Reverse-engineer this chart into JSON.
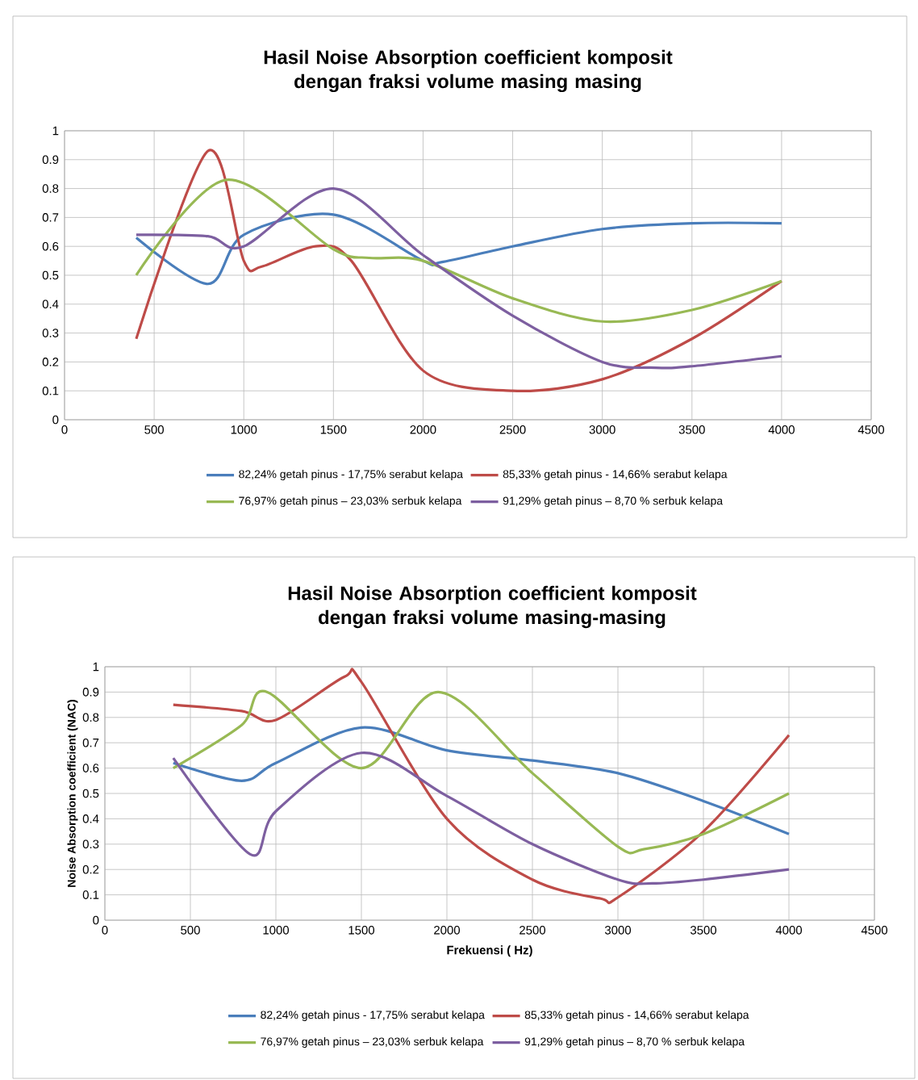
{
  "chart_data": [
    {
      "type": "line",
      "title": "Hasil Noise Absorption coefficient komposit dengan fraksi volume masing masing",
      "xlim": [
        0,
        4500
      ],
      "ylim": [
        0,
        1
      ],
      "xticks": [
        0,
        500,
        1000,
        1500,
        2000,
        2500,
        3000,
        3500,
        4000,
        4500
      ],
      "yticks": [
        0,
        0.1,
        0.2,
        0.3,
        0.4,
        0.5,
        0.6,
        0.7,
        0.8,
        0.9,
        1
      ],
      "grid": true,
      "legend": "bottom",
      "series": [
        {
          "name": "82,24% getah pinus - 17,75% serabut kelapa",
          "color": "#4a7ebb",
          "x": [
            400,
            800,
            1000,
            1500,
            2000,
            2100,
            2500,
            3000,
            3500,
            4000
          ],
          "values": [
            0.63,
            0.47,
            0.64,
            0.71,
            0.55,
            0.545,
            0.6,
            0.66,
            0.68,
            0.68
          ]
        },
        {
          "name": "85,33% getah pinus - 14,66% serabut kelapa",
          "color": "#be4b48",
          "x": [
            400,
            800,
            1000,
            1100,
            1400,
            1600,
            2000,
            2500,
            3000,
            3500,
            4000
          ],
          "values": [
            0.28,
            0.93,
            0.55,
            0.53,
            0.6,
            0.55,
            0.17,
            0.1,
            0.14,
            0.28,
            0.48
          ]
        },
        {
          "name": "76,97% getah pinus – 23,03% serbuk kelapa",
          "color": "#98b954",
          "x": [
            400,
            900,
            1500,
            1700,
            2000,
            2500,
            3000,
            3500,
            4000
          ],
          "values": [
            0.5,
            0.83,
            0.59,
            0.56,
            0.55,
            0.42,
            0.34,
            0.38,
            0.48
          ]
        },
        {
          "name": "91,29% getah pinus – 8,70 % serbuk kelapa",
          "color": "#7d5fa0",
          "x": [
            400,
            800,
            1000,
            1500,
            2000,
            2500,
            3000,
            3300,
            3500,
            4000
          ],
          "values": [
            0.64,
            0.635,
            0.6,
            0.8,
            0.57,
            0.36,
            0.2,
            0.18,
            0.185,
            0.22
          ]
        }
      ]
    },
    {
      "type": "line",
      "title": "Hasil Noise Absorption coefficient komposit dengan fraksi volume masing-masing",
      "xlabel": "Frekuensi ( Hz)",
      "ylabel": "Noise Absorption coefficient (NAC)",
      "xlim": [
        0,
        4500
      ],
      "ylim": [
        0,
        1
      ],
      "xticks": [
        0,
        500,
        1000,
        1500,
        2000,
        2500,
        3000,
        3500,
        4000,
        4500
      ],
      "yticks": [
        0,
        0.1,
        0.2,
        0.3,
        0.4,
        0.5,
        0.6,
        0.7,
        0.8,
        0.9,
        1
      ],
      "grid": true,
      "legend": "bottom",
      "series": [
        {
          "name": "82,24% getah pinus - 17,75% serabut kelapa",
          "color": "#4a7ebb",
          "x": [
            400,
            800,
            1000,
            1500,
            2000,
            2500,
            3000,
            3500,
            4000
          ],
          "values": [
            0.62,
            0.55,
            0.62,
            0.76,
            0.67,
            0.63,
            0.58,
            0.47,
            0.34
          ]
        },
        {
          "name": "85,33% getah pinus - 14,66% serabut kelapa",
          "color": "#be4b48",
          "x": [
            400,
            800,
            1000,
            1400,
            1500,
            2000,
            2500,
            2900,
            3000,
            3500,
            4000
          ],
          "values": [
            0.85,
            0.825,
            0.79,
            0.96,
            0.94,
            0.4,
            0.16,
            0.085,
            0.09,
            0.35,
            0.73
          ]
        },
        {
          "name": "76,97% getah pinus – 23,03% serbuk kelapa",
          "color": "#98b954",
          "x": [
            400,
            800,
            950,
            1500,
            1950,
            2500,
            3000,
            3150,
            3500,
            4000
          ],
          "values": [
            0.6,
            0.77,
            0.9,
            0.6,
            0.9,
            0.58,
            0.29,
            0.28,
            0.34,
            0.5
          ]
        },
        {
          "name": "91,29% getah pinus – 8,70 % serbuk kelapa",
          "color": "#7d5fa0",
          "x": [
            400,
            850,
            1000,
            1500,
            2000,
            2500,
            3000,
            3200,
            3500,
            4000
          ],
          "values": [
            0.64,
            0.26,
            0.43,
            0.66,
            0.49,
            0.3,
            0.16,
            0.145,
            0.16,
            0.2
          ]
        }
      ]
    }
  ]
}
